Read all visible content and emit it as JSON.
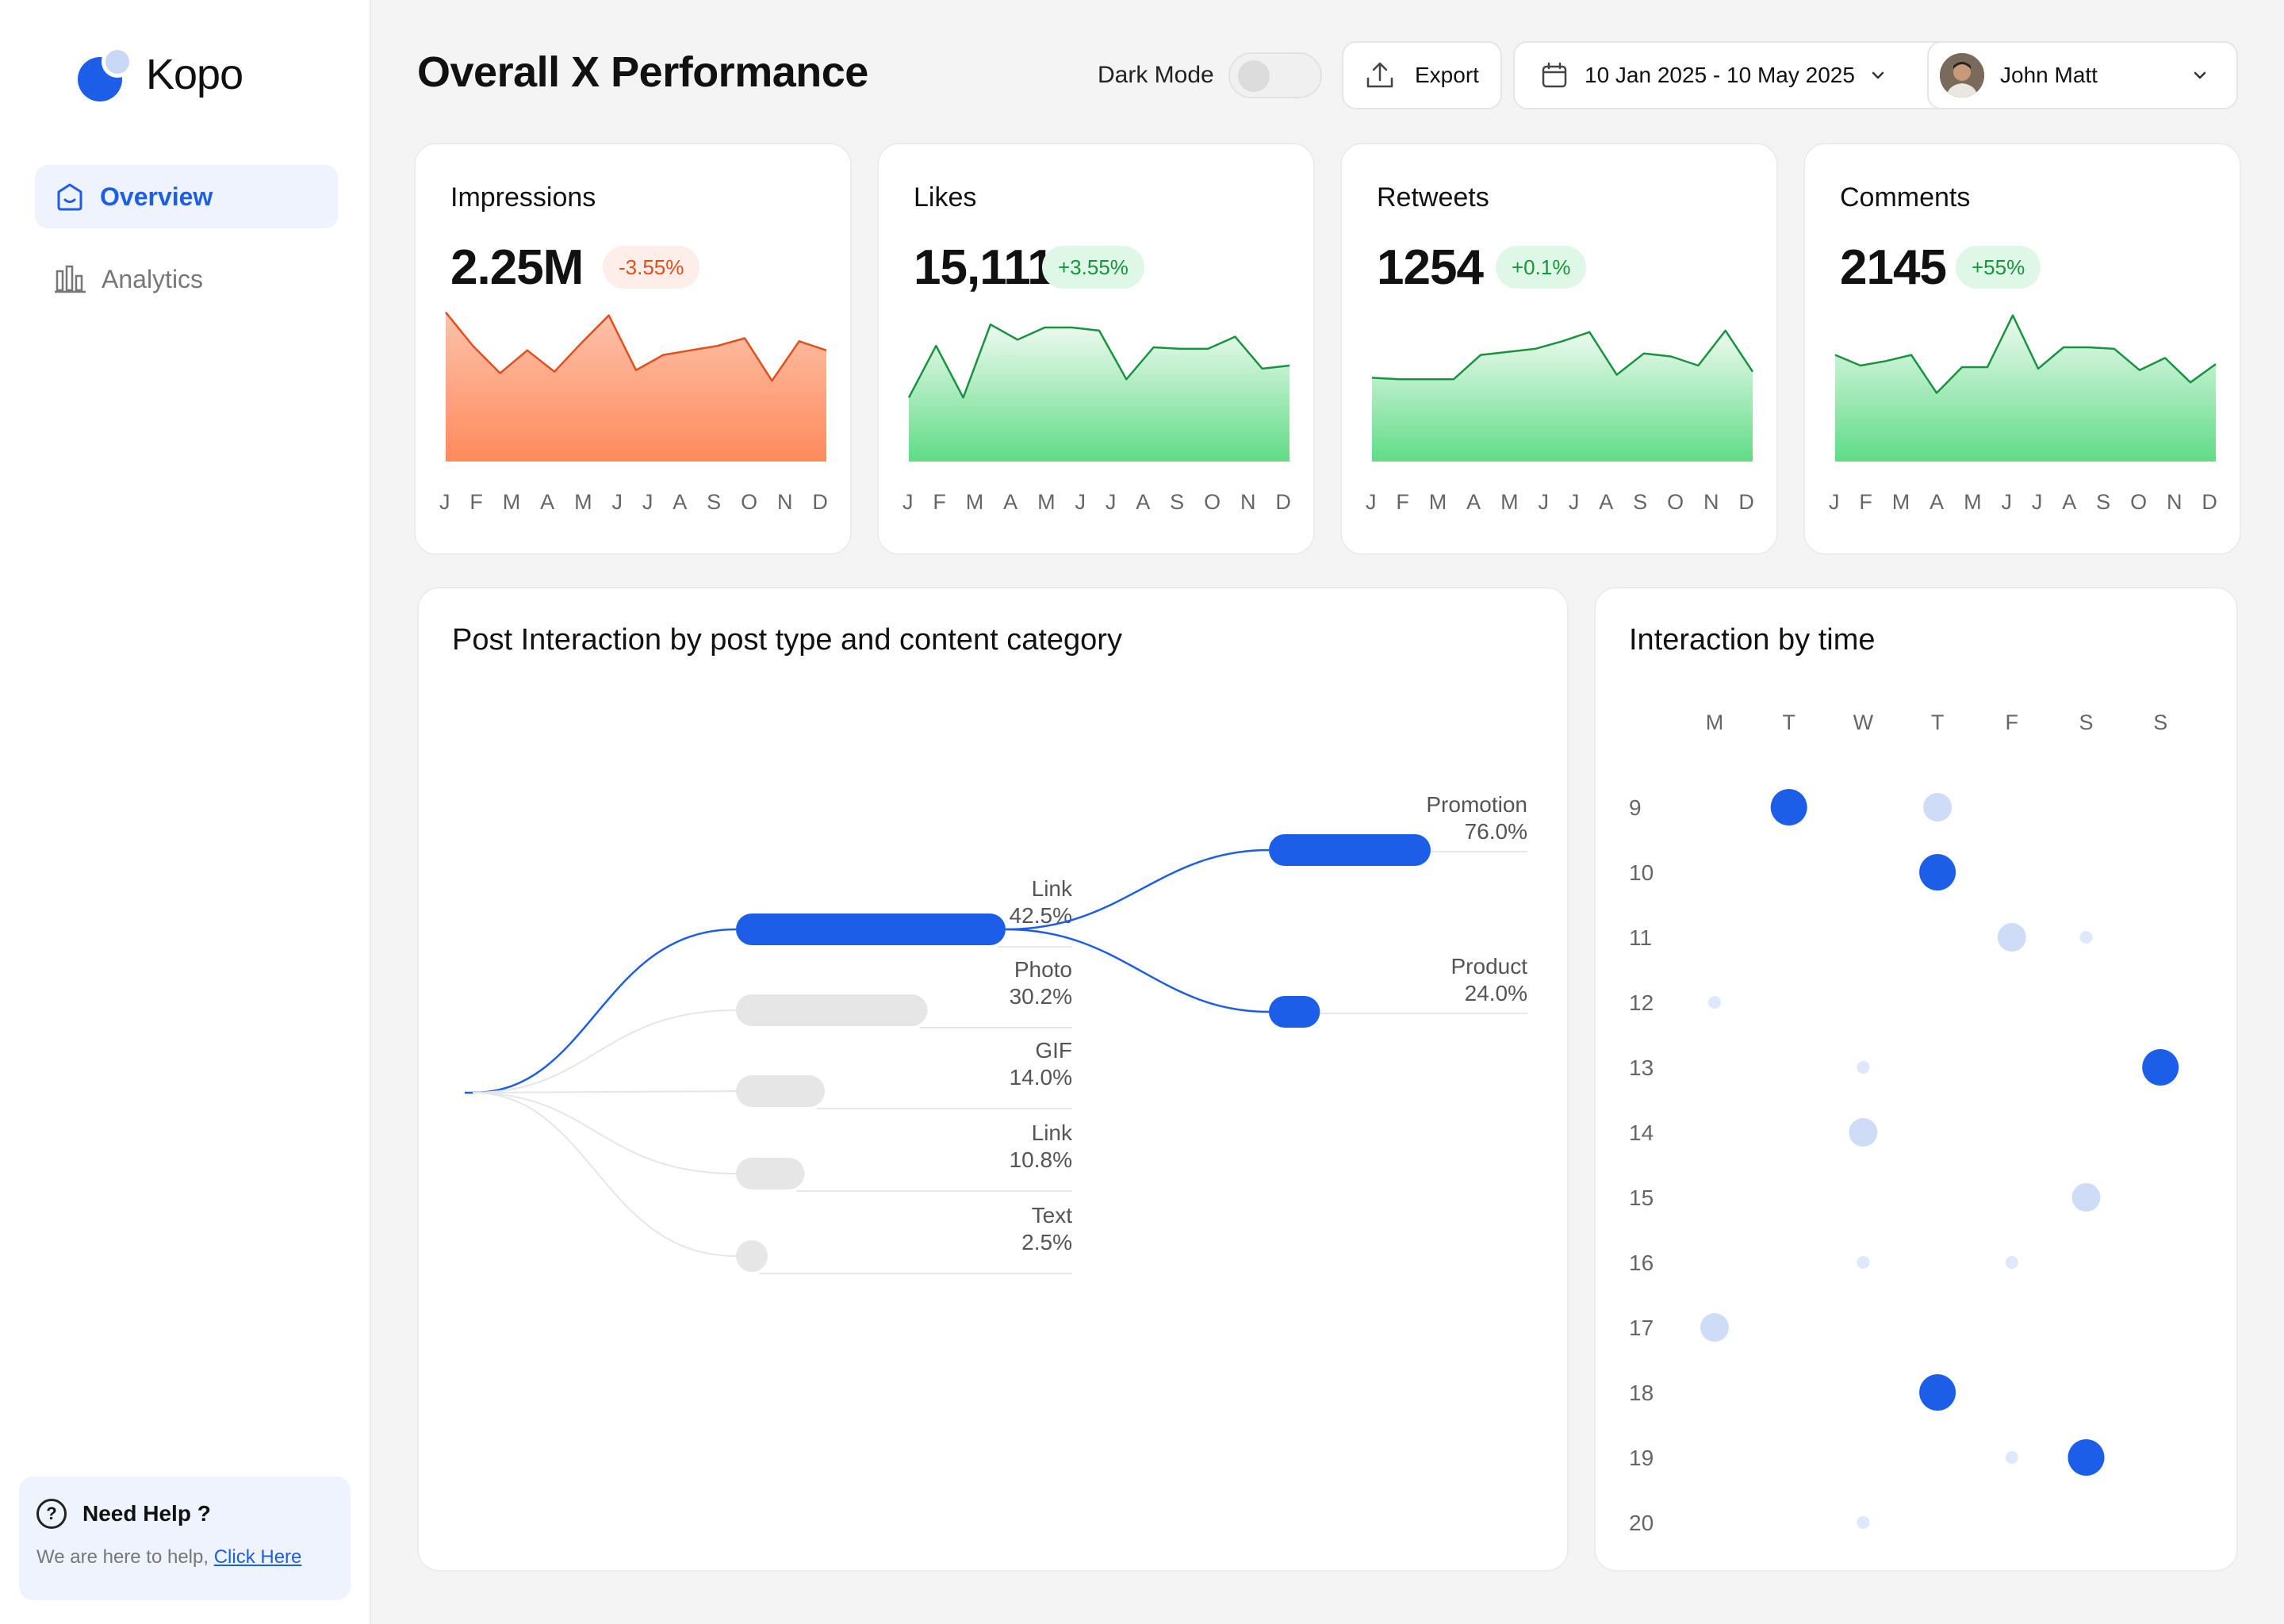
{
  "sidebar": {
    "brand": "Kopo",
    "nav": [
      {
        "label": "Overview",
        "active": true
      },
      {
        "label": "Analytics",
        "active": false
      }
    ],
    "help": {
      "title": "Need Help ?",
      "text": "We are here to help,",
      "link": "Click Here"
    }
  },
  "header": {
    "title": "Overall X Performance",
    "dark_mode_label": "Dark Mode",
    "dark_mode_on": false,
    "export_label": "Export",
    "date_range": "10 Jan 2025 - 10 May 2025",
    "user_name": "John Matt"
  },
  "months": [
    "J",
    "F",
    "M",
    "A",
    "M",
    "J",
    "J",
    "A",
    "S",
    "O",
    "N",
    "D"
  ],
  "kpis": [
    {
      "label": "Impressions",
      "value": "2.25M",
      "change": "-3.55%",
      "trend": "neg",
      "series": [
        98,
        76,
        58,
        73,
        59,
        78,
        96,
        60,
        70,
        73,
        76,
        81,
        53,
        79,
        73
      ]
    },
    {
      "label": "Likes",
      "value": "15,111",
      "change": "+3.55%",
      "trend": "pos",
      "series": [
        42,
        76,
        42,
        90,
        80,
        88,
        88,
        86,
        54,
        75,
        74,
        74,
        82,
        61,
        63
      ]
    },
    {
      "label": "Retweets",
      "value": "1254",
      "change": "+0.1%",
      "trend": "pos",
      "series": [
        55,
        54,
        54,
        54,
        70,
        72,
        74,
        79,
        85,
        57,
        71,
        69,
        63,
        86,
        59
      ]
    },
    {
      "label": "Comments",
      "value": "2145",
      "change": "+55%",
      "trend": "pos",
      "series": [
        70,
        63,
        66,
        70,
        45,
        62,
        62,
        96,
        61,
        75,
        75,
        74,
        60,
        68,
        52,
        64
      ]
    }
  ],
  "tree": {
    "title": "Post Interaction by post type and content category",
    "types": [
      {
        "label": "Link",
        "value": "42.5%",
        "pct": 42.5,
        "highlight": true
      },
      {
        "label": "Photo",
        "value": "30.2%",
        "pct": 30.2,
        "highlight": false
      },
      {
        "label": "GIF",
        "value": "14.0%",
        "pct": 14.0,
        "highlight": false
      },
      {
        "label": "Link",
        "value": "10.8%",
        "pct": 10.8,
        "highlight": false
      },
      {
        "label": "Text",
        "value": "2.5%",
        "pct": 2.5,
        "highlight": false
      }
    ],
    "categories": [
      {
        "label": "Promotion",
        "value": "76.0%",
        "pct": 76.0
      },
      {
        "label": "Product",
        "value": "24.0%",
        "pct": 24.0
      }
    ]
  },
  "heatmap": {
    "title": "Interaction by time",
    "days": [
      "M",
      "T",
      "W",
      "T",
      "F",
      "S",
      "S"
    ],
    "hours": [
      "9",
      "10",
      "11",
      "12",
      "13",
      "14",
      "15",
      "16",
      "17",
      "18",
      "19",
      "20"
    ],
    "points": [
      {
        "day": 1,
        "hour": 0,
        "level": 3
      },
      {
        "day": 3,
        "hour": 0,
        "level": 2
      },
      {
        "day": 3,
        "hour": 1,
        "level": 3
      },
      {
        "day": 4,
        "hour": 2,
        "level": 2
      },
      {
        "day": 5,
        "hour": 2,
        "level": 1
      },
      {
        "day": 0,
        "hour": 3,
        "level": 1
      },
      {
        "day": 2,
        "hour": 4,
        "level": 1
      },
      {
        "day": 6,
        "hour": 4,
        "level": 3
      },
      {
        "day": 2,
        "hour": 5,
        "level": 2
      },
      {
        "day": 5,
        "hour": 6,
        "level": 2
      },
      {
        "day": 2,
        "hour": 7,
        "level": 1
      },
      {
        "day": 4,
        "hour": 7,
        "level": 1
      },
      {
        "day": 0,
        "hour": 8,
        "level": 2
      },
      {
        "day": 3,
        "hour": 9,
        "level": 3
      },
      {
        "day": 4,
        "hour": 10,
        "level": 1
      },
      {
        "day": 5,
        "hour": 10,
        "level": 3
      },
      {
        "day": 2,
        "hour": 11,
        "level": 1
      }
    ]
  },
  "colors": {
    "accent": "#1d5ee8",
    "accent_light": "#cfdcf8",
    "neg": "#e24f1d",
    "pos": "#18943e",
    "neg_fill_top": "#fcc2ab",
    "neg_fill_bottom": "#ff8a5c",
    "pos_fill_top": "#eefaf1",
    "pos_fill_bottom": "#5fdc86"
  }
}
